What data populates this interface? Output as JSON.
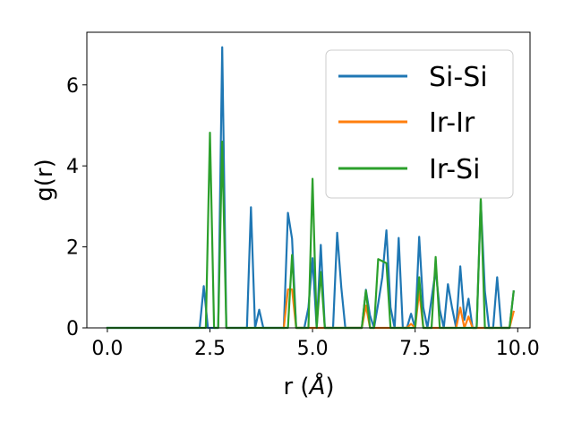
{
  "chart_data": {
    "type": "line",
    "title": "",
    "xlabel_main": "r (",
    "xlabel_unit": "Å",
    "xlabel_close": ")",
    "ylabel": "g(r)",
    "xlim": [
      -0.5,
      10.3
    ],
    "ylim": [
      0,
      7.3
    ],
    "xticks": [
      0.0,
      2.5,
      5.0,
      7.5,
      10.0
    ],
    "xtick_labels": [
      "0.0",
      "2.5",
      "5.0",
      "7.5",
      "10.0"
    ],
    "yticks": [
      0,
      2,
      4,
      6
    ],
    "ytick_labels": [
      "0",
      "2",
      "4",
      "6"
    ],
    "grid": false,
    "legend_position": "top-right",
    "series": [
      {
        "name": "Si-Si",
        "color": "#1f77b4",
        "points": [
          [
            0.0,
            0
          ],
          [
            2.25,
            0
          ],
          [
            2.35,
            1.03
          ],
          [
            2.45,
            0
          ],
          [
            2.7,
            0
          ],
          [
            2.8,
            6.93
          ],
          [
            2.9,
            0
          ],
          [
            3.4,
            0
          ],
          [
            3.5,
            2.98
          ],
          [
            3.6,
            0
          ],
          [
            3.7,
            0.45
          ],
          [
            3.8,
            0
          ],
          [
            4.3,
            0
          ],
          [
            4.4,
            2.84
          ],
          [
            4.5,
            2.2
          ],
          [
            4.6,
            0
          ],
          [
            4.8,
            0
          ],
          [
            4.9,
            0.5
          ],
          [
            5.0,
            1.72
          ],
          [
            5.1,
            0
          ],
          [
            5.2,
            2.05
          ],
          [
            5.3,
            0
          ],
          [
            5.5,
            0
          ],
          [
            5.6,
            2.35
          ],
          [
            5.7,
            1.0
          ],
          [
            5.8,
            0
          ],
          [
            6.2,
            0
          ],
          [
            6.3,
            0.94
          ],
          [
            6.4,
            0.3
          ],
          [
            6.5,
            0
          ],
          [
            6.6,
            0.6
          ],
          [
            6.7,
            1.25
          ],
          [
            6.8,
            2.41
          ],
          [
            6.9,
            0.5
          ],
          [
            7.0,
            0
          ],
          [
            7.1,
            2.22
          ],
          [
            7.2,
            0
          ],
          [
            7.3,
            0
          ],
          [
            7.4,
            0.35
          ],
          [
            7.5,
            0
          ],
          [
            7.6,
            2.25
          ],
          [
            7.7,
            0.5
          ],
          [
            7.8,
            0
          ],
          [
            8.0,
            1.43
          ],
          [
            8.1,
            0.45
          ],
          [
            8.2,
            0
          ],
          [
            8.3,
            1.08
          ],
          [
            8.4,
            0.5
          ],
          [
            8.5,
            0
          ],
          [
            8.6,
            1.52
          ],
          [
            8.7,
            0.2
          ],
          [
            8.8,
            0.72
          ],
          [
            8.9,
            0
          ],
          [
            9.0,
            0
          ],
          [
            9.1,
            3.13
          ],
          [
            9.2,
            0.9
          ],
          [
            9.3,
            0
          ],
          [
            9.4,
            0
          ],
          [
            9.5,
            1.25
          ],
          [
            9.6,
            0
          ],
          [
            9.8,
            0
          ],
          [
            9.9,
            0.9
          ]
        ]
      },
      {
        "name": "Ir-Ir",
        "color": "#ff7f0e",
        "points": [
          [
            4.3,
            0
          ],
          [
            4.4,
            0.95
          ],
          [
            4.5,
            0.95
          ],
          [
            4.6,
            0
          ],
          [
            6.2,
            0
          ],
          [
            6.3,
            0.55
          ],
          [
            6.4,
            0
          ],
          [
            7.3,
            0
          ],
          [
            7.4,
            0.1
          ],
          [
            7.5,
            0
          ],
          [
            7.6,
            0.9
          ],
          [
            7.7,
            0
          ],
          [
            8.5,
            0
          ],
          [
            8.6,
            0.5
          ],
          [
            8.7,
            0
          ],
          [
            8.8,
            0.28
          ],
          [
            8.9,
            0
          ],
          [
            9.8,
            0
          ],
          [
            9.9,
            0.4
          ]
        ]
      },
      {
        "name": "Ir-Si",
        "color": "#2ca02c",
        "points": [
          [
            0.0,
            0
          ],
          [
            2.4,
            0
          ],
          [
            2.5,
            4.82
          ],
          [
            2.6,
            0
          ],
          [
            2.7,
            0
          ],
          [
            2.8,
            4.6
          ],
          [
            2.9,
            0
          ],
          [
            4.4,
            0
          ],
          [
            4.5,
            1.8
          ],
          [
            4.6,
            0
          ],
          [
            4.9,
            0
          ],
          [
            5.0,
            3.68
          ],
          [
            5.1,
            0
          ],
          [
            5.2,
            1.38
          ],
          [
            5.3,
            0
          ],
          [
            6.2,
            0
          ],
          [
            6.3,
            0.92
          ],
          [
            6.4,
            0
          ],
          [
            6.5,
            0
          ],
          [
            6.6,
            1.7
          ],
          [
            6.8,
            1.6
          ],
          [
            6.9,
            0
          ],
          [
            7.5,
            0
          ],
          [
            7.6,
            1.25
          ],
          [
            7.7,
            0
          ],
          [
            7.9,
            0
          ],
          [
            8.0,
            1.75
          ],
          [
            8.1,
            0
          ],
          [
            9.0,
            0
          ],
          [
            9.1,
            3.2
          ],
          [
            9.2,
            0
          ],
          [
            9.8,
            0
          ],
          [
            9.9,
            0.9
          ]
        ]
      }
    ]
  }
}
